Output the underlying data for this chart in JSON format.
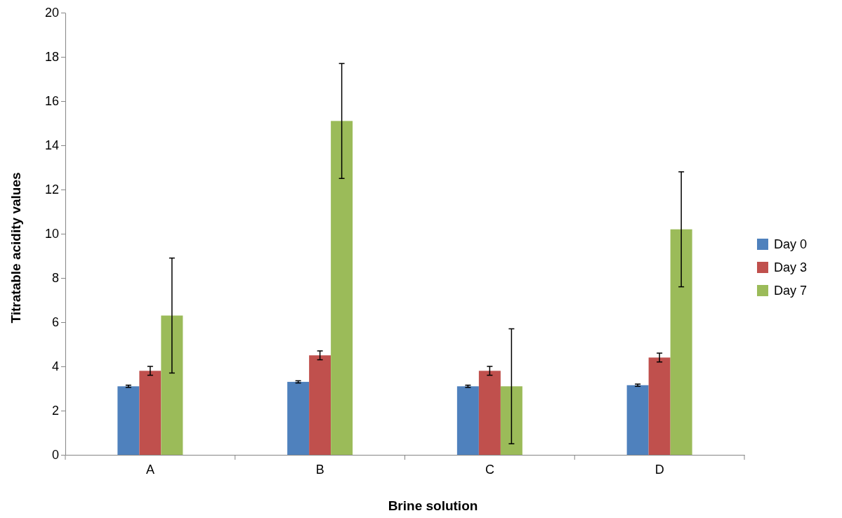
{
  "chart_data": {
    "type": "bar",
    "xlabel": "Brine solution",
    "ylabel": "Titratable acidity values",
    "categories": [
      "A",
      "B",
      "C",
      "D"
    ],
    "series": [
      {
        "name": "Day 0",
        "color": "#4f81bd",
        "values": [
          3.1,
          3.3,
          3.1,
          3.15
        ],
        "errors": [
          0.05,
          0.05,
          0.05,
          0.05
        ]
      },
      {
        "name": "Day 3",
        "color": "#c0504d",
        "values": [
          3.8,
          4.5,
          3.8,
          4.4
        ],
        "errors": [
          0.2,
          0.2,
          0.2,
          0.2
        ]
      },
      {
        "name": "Day 7",
        "color": "#9bbb59",
        "values": [
          6.3,
          15.1,
          3.1,
          10.2
        ],
        "errors": [
          2.6,
          2.6,
          2.6,
          2.6
        ]
      }
    ],
    "ylim": [
      0,
      20
    ],
    "yticks": [
      0,
      2,
      4,
      6,
      8,
      10,
      12,
      14,
      16,
      18,
      20
    ],
    "grid": false,
    "legend": "right"
  }
}
